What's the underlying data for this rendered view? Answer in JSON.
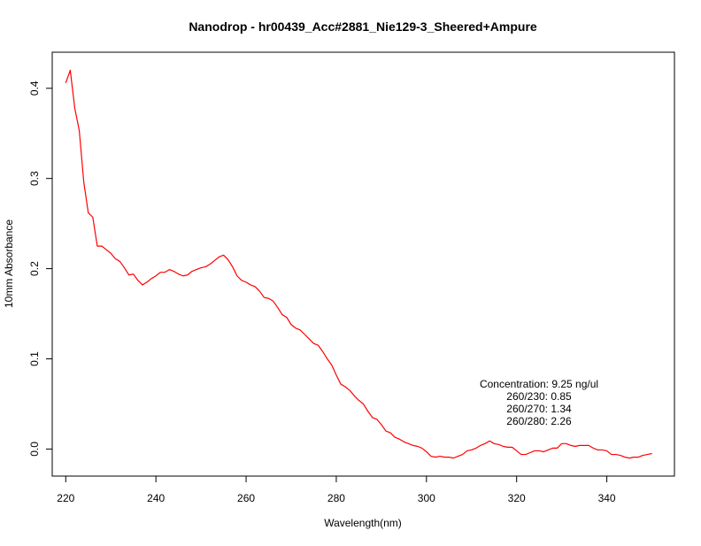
{
  "chart_data": {
    "type": "line",
    "title": "Nanodrop - hr00439_Acc#2881_Nie129-3_Sheered+Ampure",
    "xlabel": "Wavelength(nm)",
    "ylabel": "10mm Absorbance",
    "xlim": [
      217,
      355
    ],
    "ylim": [
      -0.03,
      0.44
    ],
    "x_ticks": [
      220,
      240,
      260,
      280,
      300,
      320,
      340
    ],
    "x_tick_labels": [
      "220",
      "240",
      "260",
      "280",
      "300",
      "320",
      "340"
    ],
    "y_ticks": [
      0.0,
      0.1,
      0.2,
      0.3,
      0.4
    ],
    "y_tick_labels": [
      "0.0",
      "0.1",
      "0.2",
      "0.3",
      "0.4"
    ],
    "grid": false,
    "legend": "none",
    "series": [
      {
        "color": "#ff0000",
        "x": [
          220,
          221,
          222,
          223,
          224,
          225,
          226,
          227,
          228,
          229,
          230,
          231,
          232,
          233,
          234,
          235,
          236,
          237,
          238,
          239,
          240,
          241,
          242,
          243,
          244,
          245,
          246,
          247,
          248,
          249,
          250,
          251,
          252,
          253,
          254,
          255,
          256,
          257,
          258,
          259,
          260,
          261,
          262,
          263,
          264,
          265,
          266,
          267,
          268,
          269,
          270,
          271,
          272,
          273,
          274,
          275,
          276,
          277,
          278,
          279,
          280,
          281,
          282,
          283,
          284,
          285,
          286,
          287,
          288,
          289,
          290,
          291,
          292,
          293,
          294,
          295,
          296,
          297,
          298,
          299,
          300,
          301,
          302,
          303,
          304,
          305,
          306,
          307,
          308,
          309,
          310,
          311,
          312,
          313,
          314,
          315,
          316,
          317,
          318,
          319,
          320,
          321,
          322,
          323,
          324,
          325,
          326,
          327,
          328,
          329,
          330,
          331,
          332,
          333,
          334,
          335,
          336,
          337,
          338,
          339,
          340,
          341,
          342,
          343,
          344,
          345,
          346,
          347,
          348,
          349,
          350
        ],
        "y": [
          0.406,
          0.42,
          0.378,
          0.353,
          0.296,
          0.262,
          0.257,
          0.225,
          0.225,
          0.221,
          0.217,
          0.211,
          0.208,
          0.201,
          0.193,
          0.194,
          0.187,
          0.182,
          0.185,
          0.189,
          0.192,
          0.196,
          0.196,
          0.199,
          0.197,
          0.194,
          0.192,
          0.193,
          0.197,
          0.199,
          0.201,
          0.202,
          0.205,
          0.209,
          0.213,
          0.215,
          0.21,
          0.202,
          0.192,
          0.187,
          0.185,
          0.182,
          0.18,
          0.175,
          0.168,
          0.167,
          0.164,
          0.157,
          0.149,
          0.146,
          0.138,
          0.134,
          0.132,
          0.127,
          0.122,
          0.117,
          0.115,
          0.108,
          0.1,
          0.093,
          0.082,
          0.072,
          0.069,
          0.065,
          0.059,
          0.054,
          0.05,
          0.042,
          0.035,
          0.033,
          0.027,
          0.02,
          0.018,
          0.013,
          0.011,
          0.008,
          0.006,
          0.004,
          0.003,
          0.001,
          -0.003,
          -0.008,
          -0.009,
          -0.008,
          -0.009,
          -0.009,
          -0.01,
          -0.008,
          -0.006,
          -0.002,
          -0.001,
          0.001,
          0.004,
          0.006,
          0.009,
          0.006,
          0.005,
          0.003,
          0.002,
          0.002,
          -0.002,
          -0.006,
          -0.006,
          -0.004,
          -0.002,
          -0.002,
          -0.003,
          -0.001,
          0.001,
          0.001,
          0.006,
          0.006,
          0.004,
          0.003,
          0.004,
          0.004,
          0.004,
          0.001,
          -0.001,
          -0.001,
          -0.002,
          -0.006,
          -0.006,
          -0.007,
          -0.009,
          -0.01,
          -0.009,
          -0.009,
          -0.007,
          -0.006,
          -0.005
        ]
      }
    ],
    "annotations": [
      "Concentration: 9.25 ng/ul",
      "260/230: 0.85",
      "260/270: 1.34",
      "260/280: 2.26"
    ]
  }
}
